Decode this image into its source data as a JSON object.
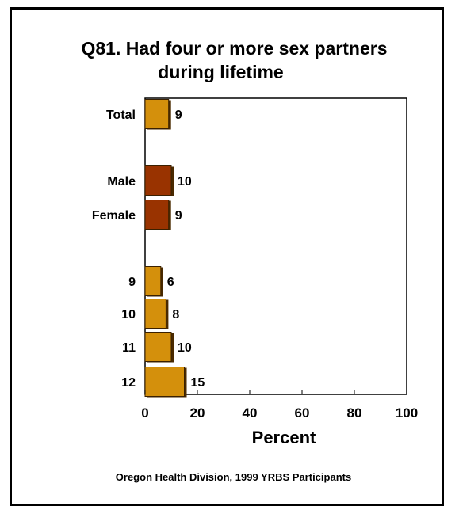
{
  "chart_data": {
    "type": "bar",
    "orientation": "horizontal",
    "title": "Q81. Had four or more sex partners during lifetime",
    "title_lines": [
      "Q81. Had four or more sex partners",
      "during lifetime"
    ],
    "categories": [
      "Total",
      "Male",
      "Female",
      "9",
      "10",
      "11",
      "12"
    ],
    "values": [
      9,
      10,
      9,
      6,
      8,
      10,
      15
    ],
    "value_labels": [
      "9",
      "10",
      "9",
      "6",
      "8",
      "10",
      "15"
    ],
    "bar_colors": [
      "#D4900C",
      "#993300",
      "#993300",
      "#D4900C",
      "#D4900C",
      "#D4900C",
      "#D4900C"
    ],
    "xlabel": "Percent",
    "xlim": [
      0,
      100
    ],
    "xticks": [
      "0",
      "20",
      "40",
      "60",
      "80",
      "100"
    ],
    "grid": false,
    "legend": "none"
  },
  "footer": "Oregon Health Division, 1999 YRBS Participants",
  "colors": {
    "gold": "#D4900C",
    "brown": "#993300",
    "shadow": "#4a2a00"
  }
}
